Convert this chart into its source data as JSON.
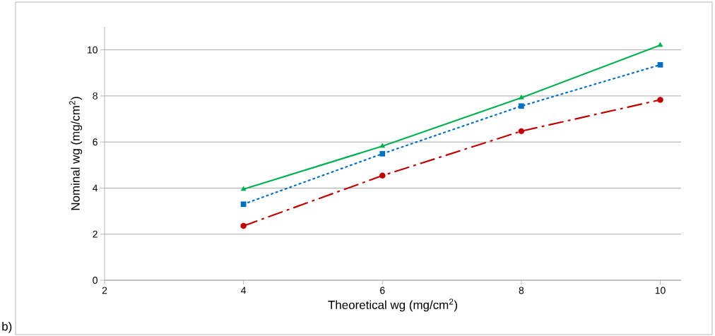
{
  "chart_data": {
    "type": "line",
    "xlabel": "Theoretical wg (mg/cm$^{2}$)",
    "ylabel": "Nominal wg (mg/cm$^{2}$)",
    "annotations": [
      "b)"
    ],
    "x": [
      4,
      6,
      8,
      10
    ],
    "series": [
      {
        "color": "#00b050",
        "values": [
          3.95,
          5.82,
          7.92,
          10.2
        ],
        "marker": "triangle",
        "line_style": "solid"
      },
      {
        "color": "#0070c0",
        "values": [
          3.3,
          5.49,
          7.56,
          9.35
        ],
        "marker": "square",
        "line_style": "dotted"
      },
      {
        "color": "#c00000",
        "values": [
          2.36,
          4.54,
          6.47,
          7.83
        ],
        "marker": "circle",
        "line_style": "dashdot"
      }
    ],
    "xlim": [
      2,
      10.3
    ],
    "ylim": [
      0,
      11
    ],
    "xticks": [
      2,
      4,
      6,
      8,
      10
    ],
    "yticks": [
      0,
      2,
      4,
      6,
      8,
      10
    ],
    "grid": "y"
  }
}
